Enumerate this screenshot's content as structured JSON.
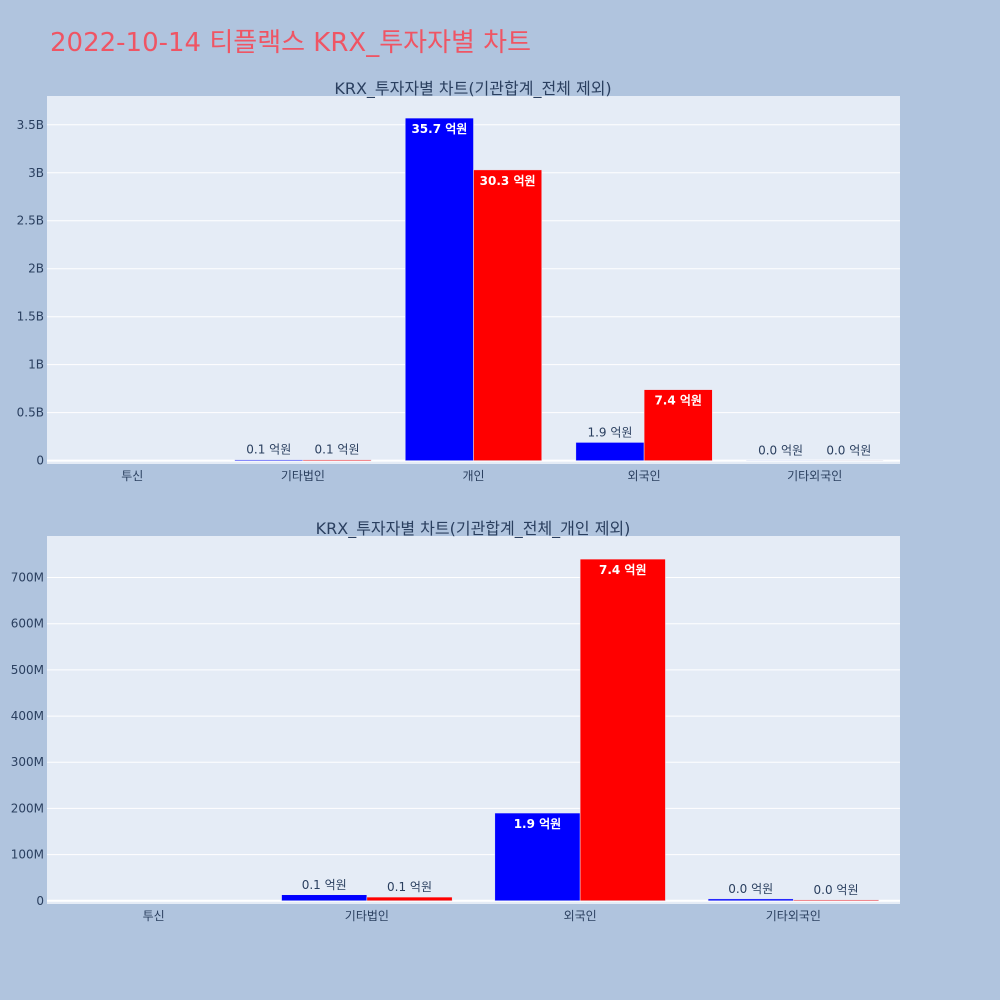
{
  "title": "2022-10-14 티플랙스 KRX_투자자별 차트",
  "title_color": "#ef5564",
  "colors": {
    "page_background": "#b0c4de",
    "plot_background": "#e5ecf6",
    "gridline": "#ffffff",
    "text": "#2a3f5f",
    "series_1": "#0000ff",
    "series_2": "#ff0000"
  },
  "chart_data": [
    {
      "type": "bar",
      "title": "KRX_투자자별 차트(기관합계_전체 제외)",
      "categories": [
        "투신",
        "기타법인",
        "개인",
        "외국인",
        "기타외국인"
      ],
      "series": [
        {
          "values": [
            0,
            10000000,
            3570000000,
            190000000,
            1000000
          ],
          "labels": [
            "",
            "0.1 억원",
            "35.7 억원",
            "1.9 억원",
            "0.0 억원"
          ]
        },
        {
          "values": [
            0,
            10000000,
            3030000000,
            740000000,
            1000000
          ],
          "labels": [
            "",
            "0.1 억원",
            "30.3 억원",
            "7.4 억원",
            "0.0 억원"
          ]
        }
      ],
      "ylim": [
        -35000000,
        3800000000
      ],
      "yticks": [
        {
          "value": 0,
          "label": "0"
        },
        {
          "value": 500000000,
          "label": "0.5B"
        },
        {
          "value": 1000000000,
          "label": "1B"
        },
        {
          "value": 1500000000,
          "label": "1.5B"
        },
        {
          "value": 2000000000,
          "label": "2B"
        },
        {
          "value": 2500000000,
          "label": "2.5B"
        },
        {
          "value": 3000000000,
          "label": "3B"
        },
        {
          "value": 3500000000,
          "label": "3.5B"
        }
      ],
      "grid": true,
      "legend": "none"
    },
    {
      "type": "bar",
      "title": "KRX_투자자별 차트(기관합계_전체_개인 제외)",
      "categories": [
        "투신",
        "기타법인",
        "외국인",
        "기타외국인"
      ],
      "series": [
        {
          "values": [
            0,
            13000000,
            190000000,
            4000000
          ],
          "labels": [
            "",
            "0.1 억원",
            "1.9 억원",
            "0.0 억원"
          ]
        },
        {
          "values": [
            0,
            8000000,
            740000000,
            2000000
          ],
          "labels": [
            "",
            "0.1 억원",
            "7.4 억원",
            "0.0 억원"
          ]
        }
      ],
      "ylim": [
        -7000000,
        790000000
      ],
      "yticks": [
        {
          "value": 0,
          "label": "0"
        },
        {
          "value": 100000000,
          "label": "100M"
        },
        {
          "value": 200000000,
          "label": "200M"
        },
        {
          "value": 300000000,
          "label": "300M"
        },
        {
          "value": 400000000,
          "label": "400M"
        },
        {
          "value": 500000000,
          "label": "500M"
        },
        {
          "value": 600000000,
          "label": "600M"
        },
        {
          "value": 700000000,
          "label": "700M"
        }
      ],
      "grid": true,
      "legend": "none"
    }
  ]
}
